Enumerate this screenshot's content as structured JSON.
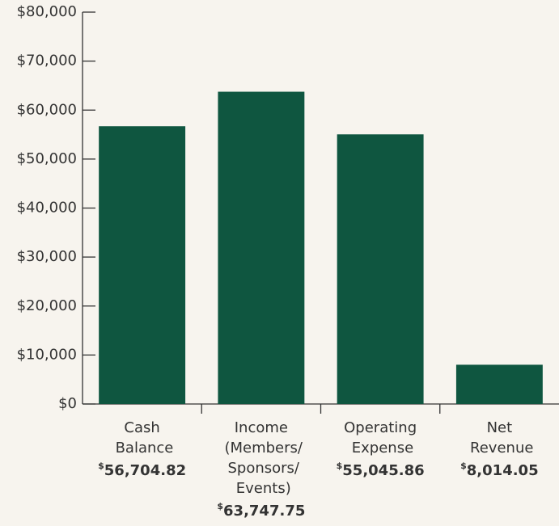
{
  "chart_data": {
    "type": "bar",
    "categories": [
      "Cash Balance",
      "Income (Members/ Sponsors/ Events)",
      "Operating Expense",
      "Net Revenue"
    ],
    "values": [
      56704.82,
      63747.75,
      55045.86,
      8014.05
    ],
    "value_labels": [
      "$56,704.82",
      "$63,747.75",
      "$55,045.86",
      "$8,014.05"
    ],
    "color": "#0f5640",
    "ylim": [
      0,
      80000
    ],
    "yticks": [
      {
        "value": 0,
        "label": "$0"
      },
      {
        "value": 10000,
        "label": "$10,000"
      },
      {
        "value": 20000,
        "label": "$20,000"
      },
      {
        "value": 30000,
        "label": "$30,000"
      },
      {
        "value": 40000,
        "label": "$40,000"
      },
      {
        "value": 50000,
        "label": "$50,000"
      },
      {
        "value": 60000,
        "label": "$60,000"
      },
      {
        "value": 70000,
        "label": "$70,000"
      },
      {
        "value": 80000,
        "label": "$80,000"
      }
    ]
  }
}
